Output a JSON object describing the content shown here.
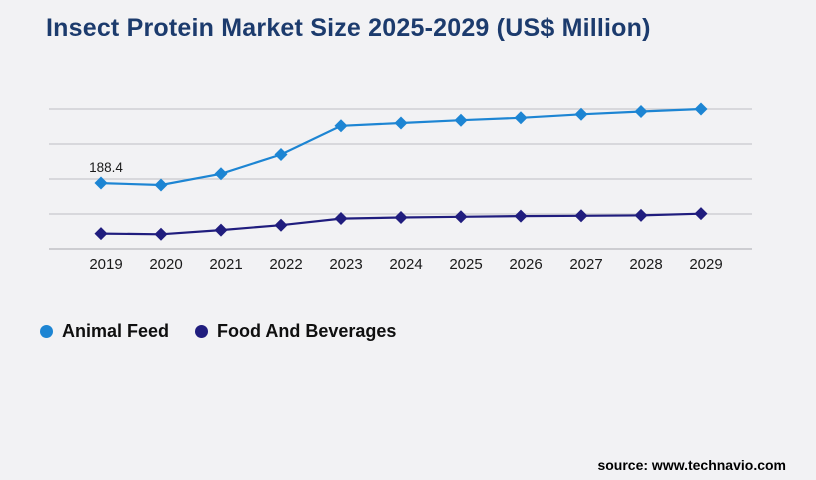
{
  "page": {
    "title": "Insect Protein Market Size 2025-2029 (US$ Million)",
    "source_credit": "source: www.technavio.com"
  },
  "colors": {
    "background": "#f2f2f4",
    "title": "#1c3b6d",
    "gridline": "#c9c9cd",
    "axis_line": "#b7b7bc",
    "tick_label": "#1a1a1a",
    "annotation_text": "#1a1a1a",
    "legend_text": "#0f0f0f",
    "animal_feed": "#1d85d3",
    "food_and_beverages": "#201d7e"
  },
  "chart_data": {
    "type": "line",
    "title": "Insect Protein Market Size 2025-2029 (US$ Million)",
    "categories": [
      "2019",
      "2020",
      "2021",
      "2022",
      "2023",
      "2024",
      "2025",
      "2026",
      "2027",
      "2028",
      "2029"
    ],
    "series": [
      {
        "name": "Animal Feed",
        "color": "#1d85d3",
        "marker": "diamond",
        "values": [
          188.4,
          183,
          215,
          270,
          352,
          360,
          368,
          375,
          385,
          393,
          400
        ]
      },
      {
        "name": "Food And Beverages",
        "color": "#201d7e",
        "marker": "diamond",
        "values": [
          44,
          42,
          54,
          68,
          87,
          90,
          92,
          94,
          95,
          96,
          101
        ]
      }
    ],
    "data_labels": [
      {
        "series": "Animal Feed",
        "category": "2019",
        "text": "188.4"
      }
    ],
    "ylim": [
      0,
      455
    ],
    "gridline_values": [
      0,
      100,
      200,
      300,
      400
    ],
    "y_axis_labels_visible": false,
    "grid": true,
    "legend_position": "bottom-left"
  }
}
